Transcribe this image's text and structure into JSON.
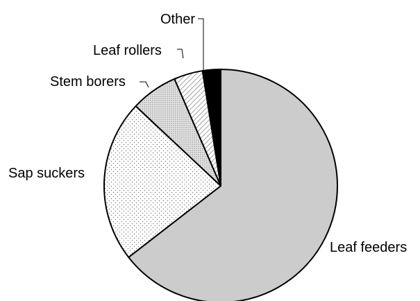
{
  "chart_data": {
    "type": "pie",
    "title": "",
    "slices": [
      {
        "label": "Leaf feeders",
        "value": 64.5,
        "fill": "solid",
        "color": "#cccccc"
      },
      {
        "label": "Sap suckers",
        "value": 22.5,
        "fill": "sparse-dots",
        "color": "#ffffff"
      },
      {
        "label": "Stem borers",
        "value": 6.5,
        "fill": "dense-dots",
        "color": "#d9d9d9"
      },
      {
        "label": "Leaf rollers",
        "value": 4.0,
        "fill": "diagonal-hatch",
        "color": "#ffffff"
      },
      {
        "label": "Other",
        "value": 2.5,
        "fill": "solid",
        "color": "#000000"
      }
    ],
    "start_angle_deg_clockwise_from_top": 0,
    "direction": "clockwise",
    "legend": "none"
  }
}
